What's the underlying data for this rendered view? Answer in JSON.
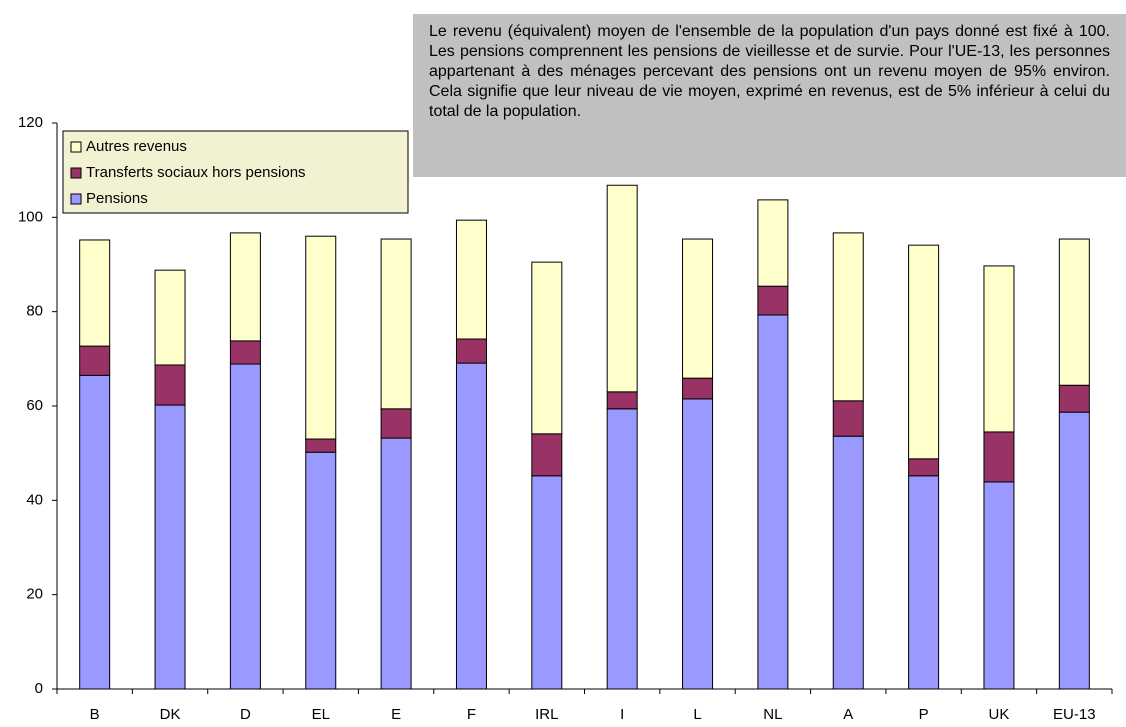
{
  "chart_data": {
    "type": "stacked_bar",
    "annotation": "Le revenu (équivalent) moyen de l'ensemble de la population d'un pays donné est fixé à 100. Les pensions comprennent les pensions de vieillesse et de survie. Pour l'UE-13, les personnes appartenant à des ménages percevant des pensions ont un revenu moyen de 95% environ. Cela signifie que leur niveau de vie moyen, exprimé en revenus, est de 5% inférieur à celui du total de la population.",
    "categories": [
      "B",
      "DK",
      "D",
      "EL",
      "E",
      "F",
      "IRL",
      "I",
      "L",
      "NL",
      "A",
      "P",
      "UK",
      "EU-13"
    ],
    "series": [
      {
        "name": "Pensions",
        "color": "#9999ff",
        "values": [
          66.5,
          60.2,
          68.9,
          50.2,
          53.2,
          69.1,
          45.2,
          59.4,
          61.5,
          79.3,
          53.6,
          45.2,
          43.9,
          58.7
        ]
      },
      {
        "name": "Transferts sociaux hors pensions",
        "color": "#993366",
        "values": [
          6.2,
          8.5,
          4.9,
          2.8,
          6.2,
          5.1,
          8.9,
          3.6,
          4.4,
          6.1,
          7.5,
          3.6,
          10.6,
          5.7
        ]
      },
      {
        "name": "Autres revenus",
        "color": "#ffffcc",
        "values": [
          22.5,
          20.1,
          22.9,
          43.0,
          36.0,
          25.2,
          36.4,
          43.8,
          29.5,
          18.3,
          35.6,
          45.3,
          35.2,
          31.0
        ]
      }
    ],
    "ylim": [
      0,
      120
    ],
    "yticks": [
      0,
      20,
      40,
      60,
      80,
      100,
      120
    ],
    "legend": "upper left"
  }
}
